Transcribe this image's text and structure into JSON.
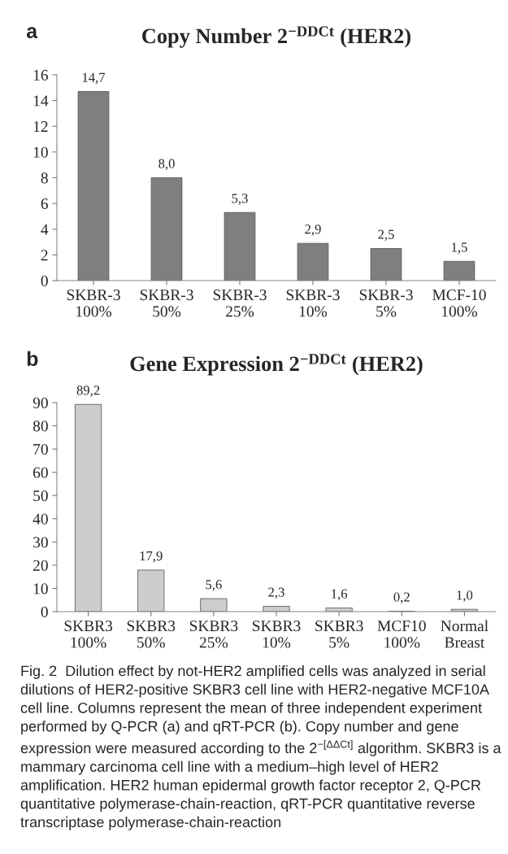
{
  "chart_data": [
    {
      "type": "bar",
      "title": "Copy Number 2$^{−DDCt}$ (HER2)",
      "categories": [
        "SKBR-3\n100%",
        "SKBR-3\n50%",
        "SKBR-3\n25%",
        "SKBR-3\n10%",
        "SKBR-3\n5%",
        "MCF-10\n100%"
      ],
      "values": [
        14.7,
        8.0,
        5.3,
        2.9,
        2.5,
        1.5
      ],
      "value_labels": [
        "14,7",
        "8,0",
        "5,3",
        "2,9",
        "2,5",
        "1,5"
      ],
      "color": "#7f7f7f",
      "ylim": [
        0,
        16
      ],
      "yticks": [
        0,
        2,
        4,
        6,
        8,
        10,
        12,
        14,
        16
      ],
      "grid": false,
      "annotations": [
        "a"
      ]
    },
    {
      "type": "bar",
      "title": "Gene Expression 2$^{−DDCt}$ (HER2)",
      "categories": [
        "SKBR3\n100%",
        "SKBR3\n50%",
        "SKBR3\n25%",
        "SKBR3\n10%",
        "SKBR3\n5%",
        "MCF10\n100%",
        "Normal\nBreast"
      ],
      "values": [
        89.2,
        17.9,
        5.6,
        2.3,
        1.6,
        0.2,
        1.0
      ],
      "value_labels": [
        "89,2",
        "17,9",
        "5,6",
        "2,3",
        "1,6",
        "0,2",
        "1,0"
      ],
      "color": "#cdcdcd",
      "ylim": [
        0,
        90
      ],
      "yticks": [
        0,
        10,
        20,
        30,
        40,
        50,
        60,
        70,
        80,
        90
      ],
      "grid": false,
      "annotations": [
        "b",
        "Fig. 2  Dilution effect by not-HER2 amplified cells was analyzed in serial dilutions of HER2-positive SKBR3 cell line with HER2-negative MCF10A cell line. Columns represent the mean of three independent experiment performed by Q-PCR (a) and qRT-PCR (b). Copy number and gene expression were measured according to the 2$^{−[ΔΔCt]}$ algorithm. SKBR3 is a mammary carcinoma cell line with a medium–high level of HER2 amplification. HER2 human epidermal growth factor receptor 2, Q-PCR quantitative polymerase-chain-reaction, qRT-PCR quantitative reverse transcriptase polymerase-chain-reaction"
      ]
    }
  ]
}
